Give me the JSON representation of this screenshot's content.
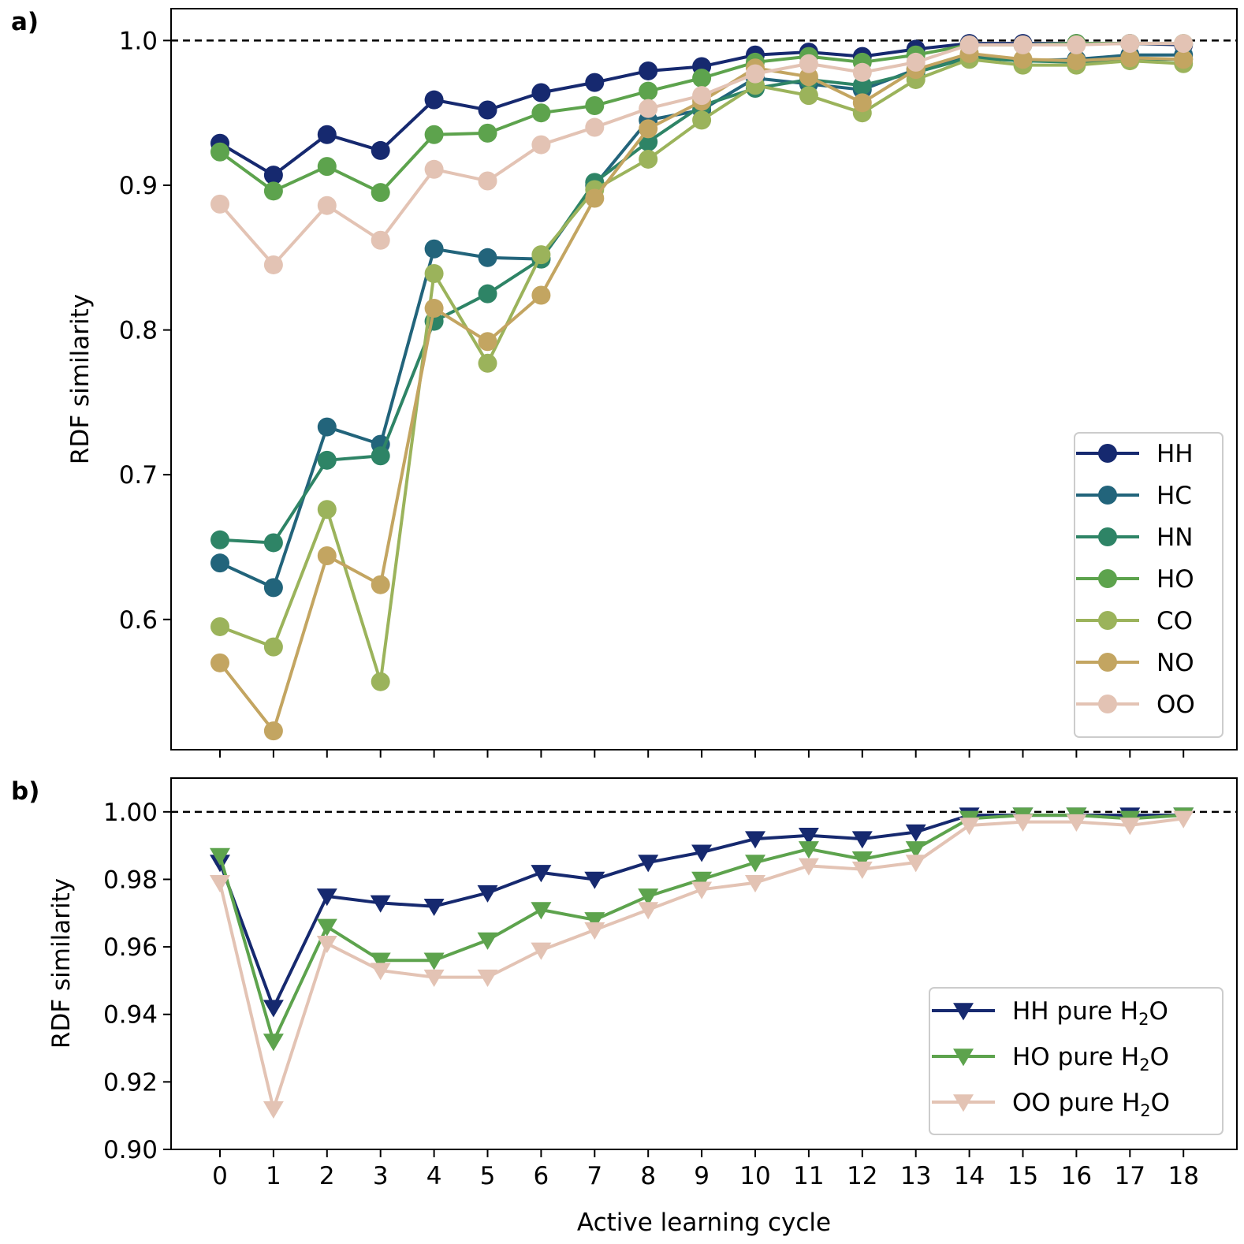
{
  "chart_data": [
    {
      "panel": "a)",
      "type": "line",
      "marker": "circle",
      "x": [
        0,
        1,
        2,
        3,
        4,
        5,
        6,
        7,
        8,
        9,
        10,
        11,
        12,
        13,
        14,
        15,
        16,
        17,
        18
      ],
      "xlabel": "",
      "ylabel": "RDF similarity",
      "ylim": [
        0.51,
        1.022
      ],
      "yticks": [
        0.6,
        0.7,
        0.8,
        0.9,
        1.0
      ],
      "ytick_labels": [
        "0.6",
        "0.7",
        "0.8",
        "0.9",
        "1.0"
      ],
      "reference_line": 1.0,
      "legend_position": "lower-right",
      "series": [
        {
          "name": "HH",
          "color": "#16296f",
          "values": [
            0.929,
            0.907,
            0.935,
            0.924,
            0.959,
            0.952,
            0.964,
            0.971,
            0.979,
            0.982,
            0.99,
            0.992,
            0.989,
            0.994,
            0.998,
            0.998,
            0.998,
            0.998,
            0.997
          ]
        },
        {
          "name": "HC",
          "color": "#22647b",
          "values": [
            0.639,
            0.622,
            0.733,
            0.721,
            0.856,
            0.85,
            0.849,
            0.9,
            0.945,
            0.952,
            0.974,
            0.97,
            0.966,
            0.98,
            0.99,
            0.986,
            0.987,
            0.99,
            0.99
          ]
        },
        {
          "name": "HN",
          "color": "#2e8466",
          "values": [
            0.655,
            0.653,
            0.71,
            0.713,
            0.806,
            0.825,
            0.849,
            0.902,
            0.93,
            0.955,
            0.967,
            0.973,
            0.969,
            0.978,
            0.988,
            0.986,
            0.985,
            0.987,
            0.987
          ]
        },
        {
          "name": "HO",
          "color": "#5da34d",
          "values": [
            0.923,
            0.896,
            0.913,
            0.895,
            0.935,
            0.936,
            0.95,
            0.955,
            0.965,
            0.974,
            0.985,
            0.989,
            0.985,
            0.99,
            0.997,
            0.997,
            0.998,
            0.998,
            0.998
          ]
        },
        {
          "name": "CO",
          "color": "#9bb35b",
          "values": [
            0.595,
            0.581,
            0.676,
            0.557,
            0.839,
            0.777,
            0.852,
            0.897,
            0.918,
            0.945,
            0.969,
            0.962,
            0.95,
            0.973,
            0.987,
            0.983,
            0.983,
            0.986,
            0.984
          ]
        },
        {
          "name": "NO",
          "color": "#c3a561",
          "values": [
            0.57,
            0.523,
            0.644,
            0.624,
            0.815,
            0.792,
            0.824,
            0.891,
            0.939,
            0.958,
            0.981,
            0.975,
            0.957,
            0.98,
            0.991,
            0.987,
            0.986,
            0.988,
            0.987
          ]
        },
        {
          "name": "OO",
          "color": "#e3c3b4",
          "values": [
            0.887,
            0.845,
            0.886,
            0.862,
            0.911,
            0.903,
            0.928,
            0.94,
            0.953,
            0.962,
            0.977,
            0.984,
            0.978,
            0.985,
            0.997,
            0.997,
            0.997,
            0.998,
            0.998
          ]
        }
      ]
    },
    {
      "panel": "b)",
      "type": "line",
      "marker": "triangle-down",
      "x": [
        0,
        1,
        2,
        3,
        4,
        5,
        6,
        7,
        8,
        9,
        10,
        11,
        12,
        13,
        14,
        15,
        16,
        17,
        18
      ],
      "xlabel": "Active learning cycle",
      "ylabel": "RDF similarity",
      "ylim": [
        0.9,
        1.01
      ],
      "yticks": [
        0.9,
        0.92,
        0.94,
        0.96,
        0.98,
        1.0
      ],
      "ytick_labels": [
        "0.90",
        "0.92",
        "0.94",
        "0.96",
        "0.98",
        "1.00"
      ],
      "xtick_labels": [
        "0",
        "1",
        "2",
        "3",
        "4",
        "5",
        "6",
        "7",
        "8",
        "9",
        "10",
        "11",
        "12",
        "13",
        "14",
        "15",
        "16",
        "17",
        "18"
      ],
      "reference_line": 1.0,
      "legend_position": "lower-right",
      "series": [
        {
          "name": "HH pure H",
          "subscript": "2",
          "suffix": "O",
          "color": "#16296f",
          "values": [
            0.985,
            0.942,
            0.975,
            0.973,
            0.972,
            0.976,
            0.982,
            0.98,
            0.985,
            0.988,
            0.992,
            0.993,
            0.992,
            0.994,
            0.999,
            0.999,
            0.999,
            0.999,
            0.999
          ]
        },
        {
          "name": "HO pure H",
          "subscript": "2",
          "suffix": "O",
          "color": "#5da34d",
          "values": [
            0.987,
            0.932,
            0.966,
            0.956,
            0.956,
            0.962,
            0.971,
            0.968,
            0.975,
            0.98,
            0.985,
            0.989,
            0.986,
            0.989,
            0.998,
            0.999,
            0.999,
            0.998,
            0.999
          ]
        },
        {
          "name": "OO pure H",
          "subscript": "2",
          "suffix": "O",
          "color": "#e3c3b4",
          "values": [
            0.979,
            0.912,
            0.961,
            0.953,
            0.951,
            0.951,
            0.959,
            0.965,
            0.971,
            0.977,
            0.979,
            0.984,
            0.983,
            0.985,
            0.996,
            0.997,
            0.997,
            0.996,
            0.998
          ]
        }
      ]
    }
  ]
}
